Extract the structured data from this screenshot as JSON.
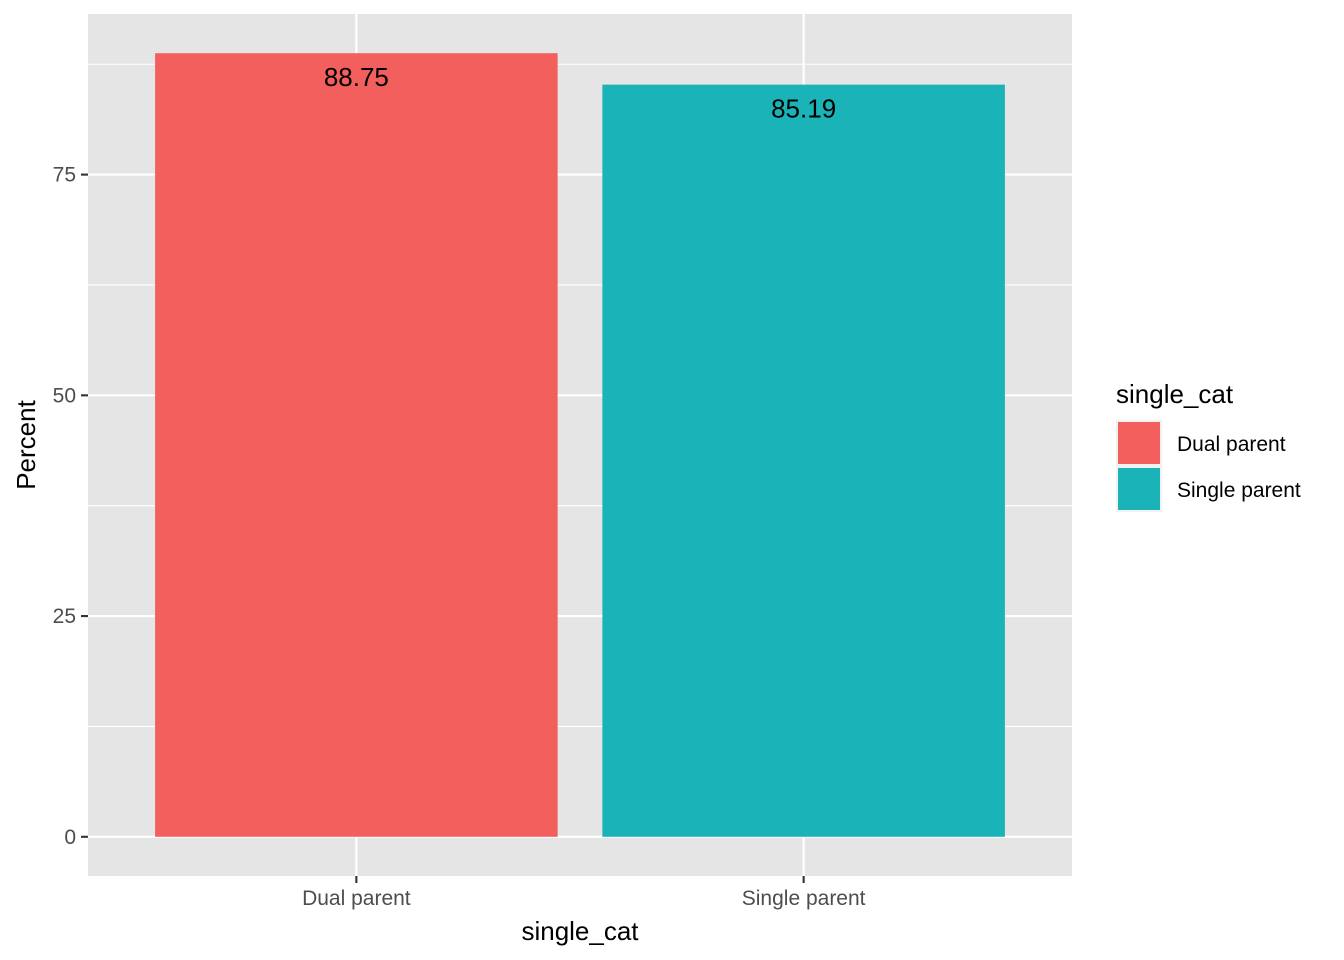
{
  "chart_data": {
    "type": "bar",
    "categories": [
      "Dual parent",
      "Single parent"
    ],
    "values": [
      88.75,
      85.19
    ],
    "data_labels": [
      "88.75",
      "85.19"
    ],
    "colors": [
      "#F25F5C",
      "#1AB3B8"
    ],
    "xlabel": "single_cat",
    "ylabel": "Percent",
    "yticks": [
      0,
      25,
      50,
      75
    ],
    "ytick_labels": [
      "0",
      "25",
      "50",
      "75"
    ],
    "ylim": [
      -4.44,
      93.19
    ],
    "grid": true,
    "legend": {
      "title": "single_cat",
      "position": "right",
      "entries": [
        "Dual parent",
        "Single parent"
      ]
    }
  }
}
